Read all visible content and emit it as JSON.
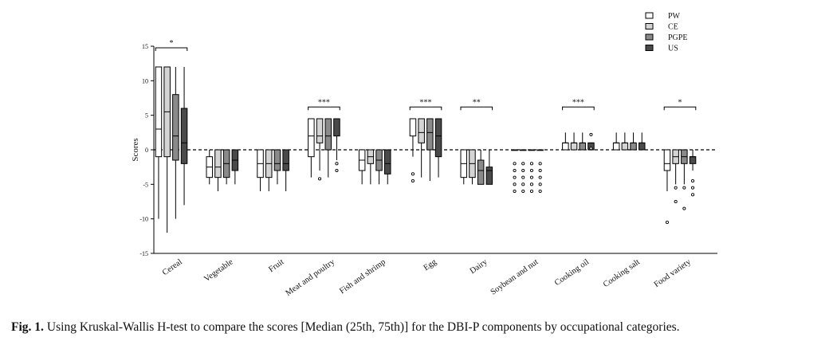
{
  "chart_data": {
    "type": "boxplot",
    "ylabel": "Scores",
    "ylim": [
      -15,
      15
    ],
    "yticks": [
      -15,
      -10,
      -5,
      0,
      5,
      10,
      15
    ],
    "reference_line": 0,
    "legend_position": "top-right",
    "series": [
      {
        "name": "PW",
        "color": "#ffffff"
      },
      {
        "name": "CE",
        "color": "#d4d4d4"
      },
      {
        "name": "PGPE",
        "color": "#8a8a8a"
      },
      {
        "name": "US",
        "color": "#4a4a4a"
      }
    ],
    "categories": [
      "Cereal",
      "Vegetable",
      "Fruit",
      "Meat and poultry",
      "Fish and shrimp",
      "Egg",
      "Dairy",
      "Soybean and nut",
      "Cooking oil",
      "Cooking salt",
      "Food variety"
    ],
    "significance": [
      "*",
      "",
      "",
      "***",
      "",
      "***",
      "**",
      "",
      "***",
      "",
      "*"
    ],
    "boxes": [
      [
        {
          "min": -10,
          "q1": -1,
          "median": 3,
          "q3": 12,
          "max": 12,
          "outliers": []
        },
        {
          "min": -12,
          "q1": -1,
          "median": 5.5,
          "q3": 12,
          "max": 12,
          "outliers": []
        },
        {
          "min": -10,
          "q1": -1.5,
          "median": 2,
          "q3": 8,
          "max": 12,
          "outliers": []
        },
        {
          "min": -8,
          "q1": -2,
          "median": 1,
          "q3": 6,
          "max": 12,
          "outliers": []
        }
      ],
      [
        {
          "min": -5,
          "q1": -4,
          "median": -2.5,
          "q3": -1,
          "max": 0,
          "outliers": []
        },
        {
          "min": -6,
          "q1": -4,
          "median": -2.5,
          "q3": 0,
          "max": 0,
          "outliers": []
        },
        {
          "min": -5,
          "q1": -4,
          "median": -2,
          "q3": 0,
          "max": 0,
          "outliers": []
        },
        {
          "min": -5,
          "q1": -3,
          "median": -1.5,
          "q3": 0,
          "max": 0,
          "outliers": []
        }
      ],
      [
        {
          "min": -6,
          "q1": -4,
          "median": -2,
          "q3": 0,
          "max": 0,
          "outliers": []
        },
        {
          "min": -6,
          "q1": -4,
          "median": -2,
          "q3": 0,
          "max": 0,
          "outliers": []
        },
        {
          "min": -5,
          "q1": -3,
          "median": -2,
          "q3": 0,
          "max": 0,
          "outliers": []
        },
        {
          "min": -6,
          "q1": -3,
          "median": -2,
          "q3": 0,
          "max": 0,
          "outliers": []
        }
      ],
      [
        {
          "min": -4,
          "q1": -1,
          "median": 2,
          "q3": 4.5,
          "max": 4.5,
          "outliers": []
        },
        {
          "min": -3,
          "q1": 1,
          "median": 2,
          "q3": 4.5,
          "max": 4.5,
          "outliers": [
            -4.2
          ]
        },
        {
          "min": -4,
          "q1": 0,
          "median": 2,
          "q3": 4.5,
          "max": 4.5,
          "outliers": []
        },
        {
          "min": -1.5,
          "q1": 2,
          "median": 4.5,
          "q3": 4.5,
          "max": 4.5,
          "outliers": [
            -2,
            -3
          ]
        }
      ],
      [
        {
          "min": -5,
          "q1": -3,
          "median": -1.5,
          "q3": 0,
          "max": 0,
          "outliers": []
        },
        {
          "min": -5,
          "q1": -2,
          "median": -1,
          "q3": 0,
          "max": 0,
          "outliers": []
        },
        {
          "min": -5,
          "q1": -3,
          "median": -1.5,
          "q3": 0,
          "max": 0,
          "outliers": []
        },
        {
          "min": -5,
          "q1": -3.5,
          "median": -2,
          "q3": 0,
          "max": 0,
          "outliers": []
        }
      ],
      [
        {
          "min": -1,
          "q1": 2,
          "median": 4.5,
          "q3": 4.5,
          "max": 4.5,
          "outliers": [
            -3.5,
            -4.5
          ]
        },
        {
          "min": -4,
          "q1": 1,
          "median": 2.5,
          "q3": 4.5,
          "max": 4.5,
          "outliers": []
        },
        {
          "min": -4.5,
          "q1": 0,
          "median": 2.5,
          "q3": 4.5,
          "max": 4.5,
          "outliers": []
        },
        {
          "min": -4,
          "q1": -1,
          "median": 2,
          "q3": 4.5,
          "max": 4.5,
          "outliers": []
        }
      ],
      [
        {
          "min": -5,
          "q1": -4,
          "median": -2,
          "q3": 0,
          "max": 0,
          "outliers": []
        },
        {
          "min": -5,
          "q1": -4,
          "median": -2,
          "q3": 0,
          "max": 0,
          "outliers": []
        },
        {
          "min": -5,
          "q1": -5,
          "median": -3,
          "q3": -1.5,
          "max": 0,
          "outliers": []
        },
        {
          "min": -5,
          "q1": -5,
          "median": -3,
          "q3": -2.5,
          "max": 0,
          "outliers": []
        }
      ],
      [
        {
          "min": 0,
          "q1": 0,
          "median": 0,
          "q3": 0,
          "max": 0,
          "outliers": [
            -2,
            -3,
            -4,
            -5,
            -6
          ]
        },
        {
          "min": 0,
          "q1": 0,
          "median": 0,
          "q3": 0,
          "max": 0,
          "outliers": [
            -2,
            -3,
            -4,
            -5,
            -6
          ]
        },
        {
          "min": 0,
          "q1": 0,
          "median": 0,
          "q3": 0,
          "max": 0,
          "outliers": [
            -2,
            -3,
            -4,
            -5,
            -6
          ]
        },
        {
          "min": 0,
          "q1": 0,
          "median": 0,
          "q3": 0,
          "max": 0,
          "outliers": [
            -2,
            -3,
            -4,
            -5,
            -6
          ]
        }
      ],
      [
        {
          "min": 0,
          "q1": 0,
          "median": 1,
          "q3": 1,
          "max": 2.5,
          "outliers": []
        },
        {
          "min": 0,
          "q1": 0,
          "median": 1,
          "q3": 1,
          "max": 2.5,
          "outliers": []
        },
        {
          "min": 0,
          "q1": 0,
          "median": 1,
          "q3": 1,
          "max": 2.5,
          "outliers": []
        },
        {
          "min": 0,
          "q1": 0,
          "median": 1,
          "q3": 1,
          "max": 1,
          "outliers": [
            2.2,
            0.2
          ]
        }
      ],
      [
        {
          "min": 0,
          "q1": 0,
          "median": 1,
          "q3": 1,
          "max": 2.5,
          "outliers": []
        },
        {
          "min": 0,
          "q1": 0,
          "median": 1,
          "q3": 1,
          "max": 2.5,
          "outliers": []
        },
        {
          "min": 0,
          "q1": 0,
          "median": 1,
          "q3": 1,
          "max": 2.5,
          "outliers": []
        },
        {
          "min": 0,
          "q1": 0,
          "median": 1,
          "q3": 1,
          "max": 2.5,
          "outliers": []
        }
      ],
      [
        {
          "min": -6,
          "q1": -3,
          "median": -2,
          "q3": 0,
          "max": 0,
          "outliers": [
            -10.5
          ]
        },
        {
          "min": -5,
          "q1": -2,
          "median": -1,
          "q3": 0,
          "max": 0,
          "outliers": [
            -5.5,
            -7.5
          ]
        },
        {
          "min": -5,
          "q1": -2,
          "median": -1,
          "q3": 0,
          "max": 0,
          "outliers": [
            -5.5,
            -8.5
          ]
        },
        {
          "min": -3,
          "q1": -2,
          "median": -1,
          "q3": -1,
          "max": 0,
          "outliers": [
            -4.5,
            -5.5,
            -6.5
          ]
        }
      ]
    ]
  },
  "caption": {
    "label": "Fig. 1.",
    "text": "Using Kruskal-Wallis H-test to compare the scores [Median (25th, 75th)] for the DBI-P components by occupational categories."
  }
}
